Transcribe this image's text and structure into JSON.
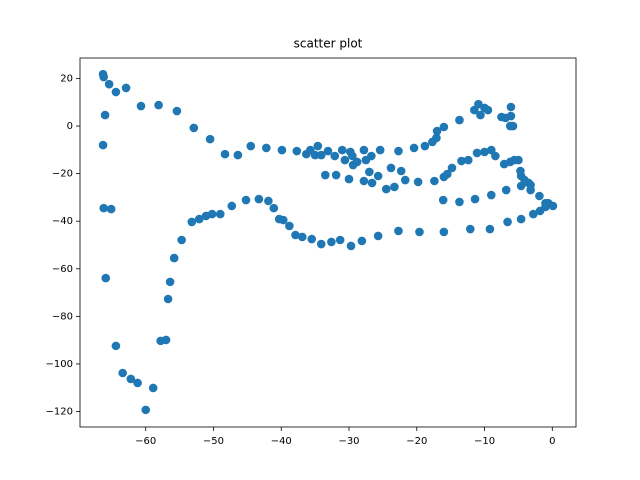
{
  "chart_data": {
    "type": "scatter",
    "title": "scatter plot",
    "color": "#1f77b4",
    "x": [
      -66.3,
      -66.2,
      -65.4,
      -64.4,
      -62.9,
      -66.0,
      -60.7,
      -58.1,
      -55.4,
      -52.9,
      -50.5,
      -48.3,
      -46.4,
      -44.5,
      -42.2,
      -39.9,
      -37.7,
      -36.3,
      -35.7,
      -35.0,
      -34.6,
      -34.1,
      -33.1,
      -32.1,
      -31.0,
      -30.6,
      -29.8,
      -29.4,
      -29.5,
      -28.8,
      -27.8,
      -26.7,
      -27.5,
      -27.0,
      -25.4,
      -25.7,
      -23.8,
      -22.7,
      -22.3,
      -21.7,
      -20.4,
      -19.8,
      -18.8,
      -17.7,
      -17.1,
      -17.0,
      -16.0,
      -13.7,
      -11.5,
      -10.9,
      -10.6,
      -10.0,
      -9.5,
      -7.5,
      -6.9,
      -6.1,
      -6.2,
      -5.8,
      -6.1,
      -11.1,
      -10.0,
      -9.0,
      -8.4,
      -7.1,
      -6.2,
      -5.6,
      -5.0,
      -4.7,
      -4.6,
      -4.1,
      -3.5,
      -3.2,
      -3.2,
      -4.6,
      -6.8,
      -9.0,
      -11.4,
      -13.7,
      -16.1,
      -16.0,
      -12.1,
      -9.2,
      -6.6,
      -4.6,
      -2.8,
      -1.8,
      -1.0,
      -0.6,
      0.1,
      -1.0,
      -1.9,
      -13.4,
      -12.4,
      -14.8,
      -15.5,
      -16.0,
      -17.4,
      -19.6,
      -22.7,
      -25.7,
      -28.1,
      -29.7,
      -31.3,
      -32.6,
      -34.1,
      -35.5,
      -36.9,
      -37.9,
      -38.8,
      -39.7,
      -40.3,
      -41.1,
      -41.9,
      -43.3,
      -45.2,
      -47.3,
      -49.0,
      -50.2,
      -51.1,
      -52.1,
      -53.2,
      -54.7,
      -55.8,
      -56.4,
      -56.7,
      -57.0,
      -57.8,
      -58.9,
      -60.0,
      -61.2,
      -62.2,
      -63.4,
      -64.4,
      -65.9,
      -65.1,
      -66.2,
      -66.3,
      -33.5,
      -31.9,
      -30.0,
      -27.8,
      -24.5,
      -23.3,
      -26.6
    ],
    "y": [
      21.8,
      20.6,
      17.6,
      14.3,
      16.0,
      4.6,
      8.4,
      8.8,
      6.3,
      -0.8,
      -5.5,
      -11.8,
      -12.2,
      -8.4,
      -9.2,
      -10.1,
      -10.5,
      -11.8,
      -10.1,
      -12.2,
      -8.4,
      -12.2,
      -10.5,
      -12.6,
      -10.1,
      -14.3,
      -10.9,
      -16.4,
      -12.6,
      -15.1,
      -10.1,
      -12.6,
      -14.3,
      -19.3,
      -10.1,
      -21.0,
      -17.6,
      -10.5,
      -18.9,
      -22.7,
      -9.2,
      -23.5,
      -8.4,
      -6.7,
      -5.0,
      -2.1,
      -0.4,
      2.5,
      6.7,
      9.2,
      4.6,
      7.6,
      6.7,
      3.8,
      3.4,
      8.0,
      0.0,
      0.0,
      4.2,
      -11.3,
      -10.9,
      -10.1,
      -12.6,
      -16.0,
      -15.1,
      -14.3,
      -14.3,
      -18.9,
      -21.0,
      -22.7,
      -23.9,
      -24.8,
      -26.9,
      -25.2,
      -26.9,
      -29.0,
      -30.7,
      -31.9,
      -31.1,
      -44.5,
      -43.3,
      -43.3,
      -40.3,
      -39.1,
      -37.0,
      -35.7,
      -34.0,
      -32.4,
      -33.6,
      -32.4,
      -29.4,
      -14.7,
      -14.3,
      -17.6,
      -20.2,
      -21.4,
      -23.1,
      -44.5,
      -44.1,
      -46.2,
      -48.3,
      -50.4,
      -47.9,
      -48.7,
      -49.6,
      -47.5,
      -46.6,
      -45.8,
      -42.0,
      -39.5,
      -39.1,
      -34.5,
      -31.5,
      -30.7,
      -31.1,
      -33.6,
      -37.0,
      -37.0,
      -37.8,
      -39.1,
      -40.3,
      -47.9,
      -55.5,
      -65.5,
      -72.7,
      -89.9,
      -90.3,
      -110.1,
      -119.3,
      -108.0,
      -106.3,
      -103.8,
      -92.4,
      -63.9,
      -34.9,
      -34.5,
      -8.0,
      -20.6,
      -20.6,
      -22.3,
      -23.1,
      -26.5,
      -25.6,
      -23.9
    ],
    "xlim": [
      -69.7,
      3.5
    ],
    "ylim": [
      -126.5,
      28.6
    ],
    "xticks": [
      {
        "value": -60,
        "label": "−60"
      },
      {
        "value": -50,
        "label": "−50"
      },
      {
        "value": -40,
        "label": "−40"
      },
      {
        "value": -30,
        "label": "−30"
      },
      {
        "value": -20,
        "label": "−20"
      },
      {
        "value": -10,
        "label": "−10"
      },
      0
    ],
    "yticks": [
      {
        "value": -120,
        "label": "−120"
      },
      {
        "value": -100,
        "label": "−100"
      },
      {
        "value": -80,
        "label": "−80"
      },
      {
        "value": -60,
        "label": "−60"
      },
      {
        "value": -40,
        "label": "−40"
      },
      {
        "value": -20,
        "label": "−20"
      },
      0,
      20
    ]
  }
}
